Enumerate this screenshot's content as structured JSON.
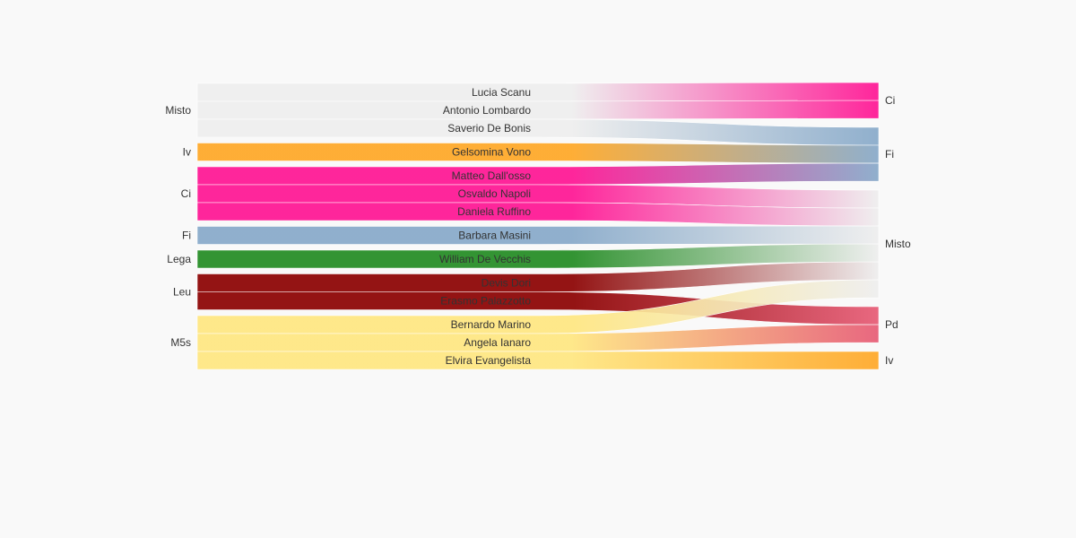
{
  "chart_data": {
    "type": "sankey",
    "title": "",
    "source_nodes": [
      {
        "name": "Misto",
        "color": "#eeeeee"
      },
      {
        "name": "Iv",
        "color": "#ffa726"
      },
      {
        "name": "Ci",
        "color": "#ff1493"
      },
      {
        "name": "Fi",
        "color": "#87a9c9"
      },
      {
        "name": "Lega",
        "color": "#228b22"
      },
      {
        "name": "Leu",
        "color": "#8b0000"
      },
      {
        "name": "M5s",
        "color": "#ffe680"
      }
    ],
    "target_nodes": [
      {
        "name": "Ci",
        "color": "#ff1493"
      },
      {
        "name": "Fi",
        "color": "#87a9c9"
      },
      {
        "name": "Misto",
        "color": "#eeeeee"
      },
      {
        "name": "Pd",
        "color": "#e75b75"
      },
      {
        "name": "Iv",
        "color": "#ffa726"
      }
    ],
    "flows": [
      {
        "label": "Lucia Scanu",
        "source": "Misto",
        "target": "Ci",
        "value": 1
      },
      {
        "label": "Antonio Lombardo",
        "source": "Misto",
        "target": "Ci",
        "value": 1
      },
      {
        "label": "Saverio De Bonis",
        "source": "Misto",
        "target": "Fi",
        "value": 1
      },
      {
        "label": "Gelsomina Vono",
        "source": "Iv",
        "target": "Fi",
        "value": 1
      },
      {
        "label": "Matteo Dall'osso",
        "source": "Ci",
        "target": "Fi",
        "value": 1
      },
      {
        "label": "Osvaldo Napoli",
        "source": "Ci",
        "target": "Misto",
        "value": 1
      },
      {
        "label": "Daniela Ruffino",
        "source": "Ci",
        "target": "Misto",
        "value": 1
      },
      {
        "label": "Barbara Masini",
        "source": "Fi",
        "target": "Misto",
        "value": 1
      },
      {
        "label": "William De Vecchis",
        "source": "Lega",
        "target": "Misto",
        "value": 1
      },
      {
        "label": "Devis Dori",
        "source": "Leu",
        "target": "Misto",
        "value": 1
      },
      {
        "label": "Erasmo Palazzotto",
        "source": "Leu",
        "target": "Pd",
        "value": 1
      },
      {
        "label": "Bernardo Marino",
        "source": "M5s",
        "target": "Misto",
        "value": 1
      },
      {
        "label": "Angela Ianaro",
        "source": "M5s",
        "target": "Pd",
        "value": 1
      },
      {
        "label": "Elvira Evangelista",
        "source": "M5s",
        "target": "Iv",
        "value": 1
      }
    ]
  }
}
